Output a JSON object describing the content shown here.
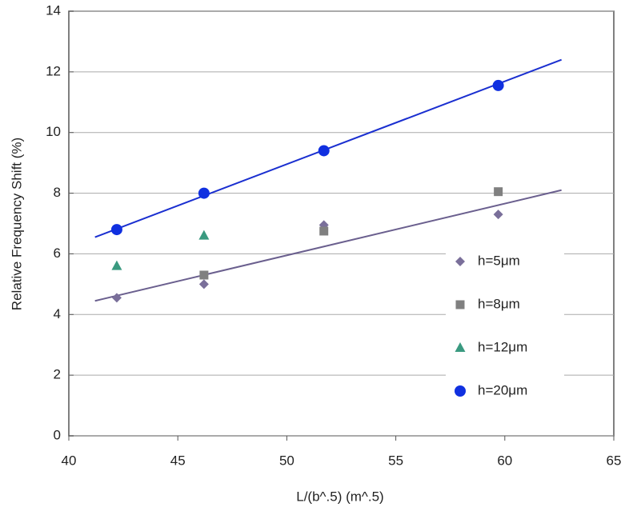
{
  "chart_data": {
    "type": "scatter",
    "xlabel": "L/(b^.5) (m^.5)",
    "ylabel": "Relative Frequency Shift (%)",
    "xlim": [
      40,
      65
    ],
    "xticks": [
      40,
      45,
      50,
      55,
      60,
      65
    ],
    "ylim": [
      0,
      14
    ],
    "yticks": [
      0,
      2,
      4,
      6,
      8,
      10,
      12,
      14
    ],
    "grid": true,
    "legend": "lower right",
    "series": [
      {
        "name": "h=5μm",
        "color": "#7a6f9a",
        "marker": "diamond",
        "x": [
          42.2,
          46.2,
          51.7,
          59.7
        ],
        "values": [
          4.55,
          5.0,
          6.95,
          7.3
        ]
      },
      {
        "name": "h=8μm",
        "color": "#808080",
        "marker": "square",
        "x": [
          46.2,
          51.7,
          59.7
        ],
        "values": [
          5.3,
          6.75,
          8.05
        ]
      },
      {
        "name": "h=12μm",
        "color": "#3a9a80",
        "marker": "triangle",
        "x": [
          42.2,
          46.2
        ],
        "values": [
          5.6,
          6.6
        ]
      },
      {
        "name": "h=20μm",
        "color": "#1030e0",
        "marker": "circle",
        "x": [
          42.2,
          46.2,
          51.7,
          59.7
        ],
        "values": [
          6.8,
          8.0,
          9.4,
          11.55
        ]
      }
    ],
    "trend_lines": [
      {
        "color": "#1a2fd0",
        "x": [
          41.2,
          62.6
        ],
        "values": [
          6.55,
          12.4
        ]
      },
      {
        "color": "#6a5f8e",
        "x": [
          41.2,
          62.6
        ],
        "values": [
          4.45,
          8.1
        ]
      }
    ]
  }
}
